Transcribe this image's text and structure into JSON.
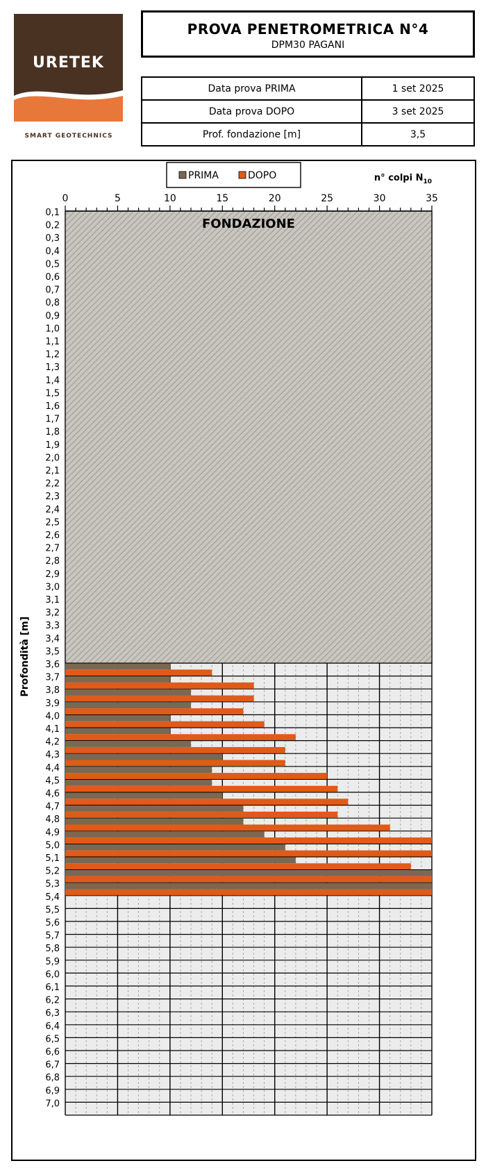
{
  "logo": {
    "brand": "URETEK",
    "tagline": "SMART GEOTECHNICS"
  },
  "header": {
    "title": "PROVA PENETROMETRICA N°4",
    "subtitle": "DPM30 PAGANI"
  },
  "info_rows": [
    {
      "label": "Data prova PRIMA",
      "value": "1 set 2025"
    },
    {
      "label": "Data prova DOPO",
      "value": "3 set 2025"
    },
    {
      "label": "Prof. fondazione [m]",
      "value": "3,5"
    }
  ],
  "colors": {
    "prima": "#7a6852",
    "dopo": "#e05a18",
    "hatch": "#c9c6c0",
    "grid_bg": "#ececec"
  },
  "chart_data": {
    "type": "bar",
    "orientation": "horizontal",
    "legend": [
      "PRIMA",
      "DOPO"
    ],
    "legend_position": "top",
    "x_title": "n° colpi N",
    "x_title_sub": "10",
    "y_title": "Profondità [m]",
    "xlim": [
      0,
      35
    ],
    "x_ticks": [
      "0",
      "5",
      "10",
      "15",
      "20",
      "25",
      "30",
      "35"
    ],
    "depths": [
      "0,1",
      "0,2",
      "0,3",
      "0,4",
      "0,5",
      "0,6",
      "0,7",
      "0,8",
      "0,9",
      "1,0",
      "1,1",
      "1,2",
      "1,3",
      "1,4",
      "1,5",
      "1,6",
      "1,7",
      "1,8",
      "1,9",
      "2,0",
      "2,1",
      "2,2",
      "2,3",
      "2,4",
      "2,5",
      "2,6",
      "2,7",
      "2,8",
      "2,9",
      "3,0",
      "3,1",
      "3,2",
      "3,3",
      "3,4",
      "3,5",
      "3,6",
      "3,7",
      "3,8",
      "3,9",
      "4,0",
      "4,1",
      "4,2",
      "4,3",
      "4,4",
      "4,5",
      "4,6",
      "4,7",
      "4,8",
      "4,9",
      "5,0",
      "5,1",
      "5,2",
      "5,3",
      "5,4",
      "5,5",
      "5,6",
      "5,7",
      "5,8",
      "5,9",
      "6,0",
      "6,1",
      "6,2",
      "6,3",
      "6,4",
      "6,5",
      "6,6",
      "6,7",
      "6,8",
      "6,9",
      "7,0"
    ],
    "foundation_label": "FONDAZIONE",
    "foundation_depth": 3.5,
    "series": [
      {
        "name": "PRIMA",
        "depths": [
          3.6,
          3.7,
          3.8,
          3.9,
          4.0,
          4.1,
          4.2,
          4.3,
          4.4,
          4.5,
          4.6,
          4.7,
          4.8,
          4.9,
          5.0,
          5.1,
          5.2,
          5.3
        ],
        "values": [
          10,
          10,
          12,
          12,
          10,
          10,
          12,
          15,
          14,
          14,
          15,
          17,
          17,
          19,
          21,
          22,
          35,
          35
        ]
      },
      {
        "name": "DOPO",
        "depths": [
          3.6,
          3.7,
          3.8,
          3.9,
          4.0,
          4.1,
          4.2,
          4.3,
          4.4,
          4.5,
          4.6,
          4.7,
          4.8,
          4.9,
          5.0,
          5.1,
          5.2,
          5.3
        ],
        "values": [
          14,
          18,
          18,
          17,
          19,
          22,
          21,
          21,
          25,
          26,
          27,
          26,
          31,
          35,
          35,
          33,
          35,
          35
        ]
      }
    ]
  }
}
